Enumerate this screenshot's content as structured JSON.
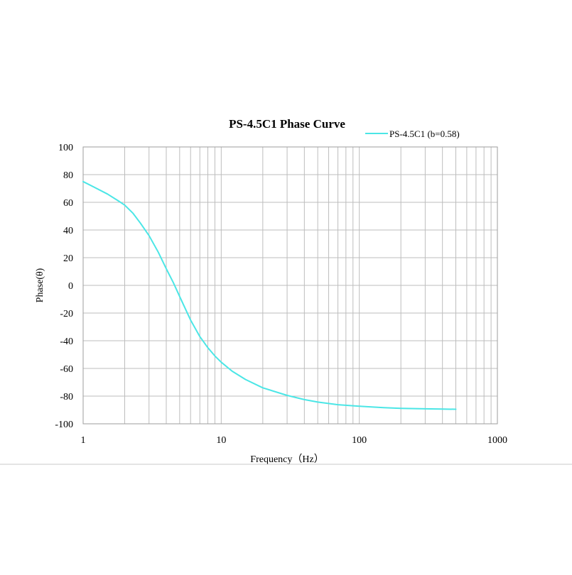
{
  "chart_data": {
    "type": "line",
    "title": "PS-4.5C1 Phase Curve",
    "xlabel": "Frequency（Hz）",
    "ylabel": "Phase(θ)",
    "x_scale": "log",
    "xlim": [
      1,
      1000
    ],
    "ylim": [
      -100,
      100
    ],
    "x_ticks": [
      1,
      10,
      100,
      1000
    ],
    "x_tick_labels": [
      "1",
      "10",
      "100",
      "1000"
    ],
    "y_ticks": [
      100,
      80,
      60,
      40,
      20,
      0,
      -20,
      -40,
      -60,
      -80,
      -100
    ],
    "y_tick_labels": [
      "100",
      "80",
      "60",
      "40",
      "20",
      "0",
      "-20",
      "-40",
      "-60",
      "-80",
      "-100"
    ],
    "grid": true,
    "legend_position": "top-right",
    "series": [
      {
        "name": "PS-4.5C1  (b=0.58)",
        "color": "#4be6e6",
        "x": [
          1,
          1.2,
          1.5,
          1.8,
          2,
          2.3,
          2.6,
          3,
          3.5,
          4,
          4.5,
          5,
          5.5,
          6,
          7,
          8,
          9,
          10,
          12,
          15,
          20,
          30,
          40,
          50,
          70,
          100,
          150,
          200,
          300,
          400,
          500
        ],
        "y": [
          75,
          71,
          66,
          61,
          58,
          52,
          45,
          36,
          24,
          12,
          2,
          -8,
          -17,
          -25,
          -37,
          -45,
          -51,
          -55.5,
          -62,
          -68,
          -74,
          -79.5,
          -82.5,
          -84.3,
          -86.2,
          -87.3,
          -88.3,
          -88.8,
          -89.2,
          -89.4,
          -89.5
        ]
      }
    ]
  }
}
